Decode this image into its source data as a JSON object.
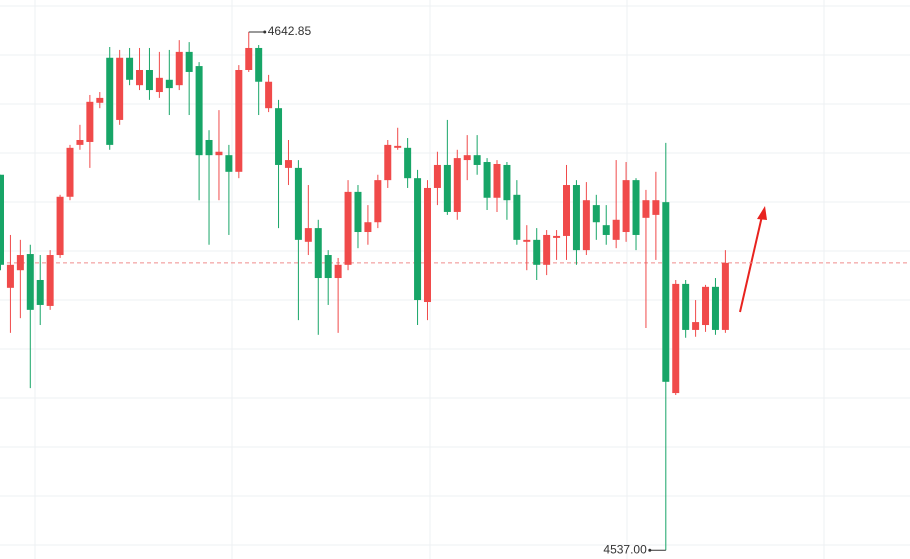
{
  "chart_data": {
    "type": "candlestick",
    "ylim": [
      4535.2,
      4649.4
    ],
    "up_color": "#f04a4a",
    "down_color": "#17a567",
    "reference_line": 4595.7,
    "reference_color": "#f08c8c",
    "max_label": "4642.85",
    "min_label": "4537.00",
    "open": [
      4613.7,
      4590.6,
      4594.2,
      4597.5,
      4592.2,
      4586.9,
      4597.3,
      4609.2,
      4619.8,
      4620.4,
      4628.4,
      4637.6,
      4624.9,
      4637.6,
      4632.0,
      4635.1,
      4630.6,
      4633.1,
      4632.0,
      4638.8,
      4635.9,
      4620.8,
      4617.7,
      4617.7,
      4614.3,
      4635.1,
      4639.6,
      4627.3,
      4627.3,
      4615.1,
      4615.1,
      4600.0,
      4602.8,
      4597.3,
      4592.6,
      4595.3,
      4610.2,
      4602.0,
      4604.0,
      4612.6,
      4619.2,
      4619.2,
      4613.0,
      4587.7,
      4611.0,
      4615.7,
      4606.1,
      4616.7,
      4617.7,
      4616.3,
      4609.0,
      4615.7,
      4609.6,
      4600.0,
      4600.4,
      4595.3,
      4600.8,
      4601.2,
      4611.6,
      4598.3,
      4607.5,
      4603.4,
      4600.4,
      4602.0,
      4612.6,
      4604.9,
      4605.5,
      4608.1,
      4569.1,
      4591.4,
      4582.0,
      4583.0,
      4590.8,
      4582.0
    ],
    "high": [
      4613.7,
      4601.4,
      4600.4,
      4599.4,
      4597.3,
      4598.3,
      4609.6,
      4619.8,
      4623.9,
      4630.0,
      4630.6,
      4639.8,
      4639.2,
      4639.6,
      4639.6,
      4639.6,
      4638.8,
      4639.2,
      4641.2,
      4640.8,
      4636.7,
      4622.8,
      4626.9,
      4619.8,
      4636.1,
      4642.85,
      4640.2,
      4634.1,
      4629.0,
      4620.8,
      4616.7,
      4611.6,
      4604.5,
      4598.3,
      4596.7,
      4612.6,
      4611.6,
      4607.5,
      4613.7,
      4620.8,
      4623.3,
      4621.2,
      4614.7,
      4612.6,
      4618.4,
      4624.9,
      4618.8,
      4621.8,
      4621.8,
      4617.1,
      4616.7,
      4616.3,
      4612.6,
      4603.4,
      4602.8,
      4602.4,
      4602.4,
      4615.7,
      4612.6,
      4612.2,
      4609.6,
      4607.5,
      4616.7,
      4616.3,
      4613.0,
      4610.6,
      4614.3,
      4620.2,
      4592.2,
      4592.2,
      4588.1,
      4591.2,
      4592.6,
      4598.3
    ],
    "low": [
      4594.2,
      4581.4,
      4584.4,
      4570.1,
      4583.0,
      4586.1,
      4596.7,
      4608.5,
      4618.8,
      4615.1,
      4627.3,
      4618.8,
      4623.9,
      4632.0,
      4631.0,
      4629.0,
      4629.4,
      4625.9,
      4631.0,
      4625.9,
      4608.5,
      4599.4,
      4608.5,
      4601.4,
      4613.0,
      4634.7,
      4625.9,
      4626.5,
      4602.8,
      4611.6,
      4584.0,
      4597.3,
      4581.0,
      4587.1,
      4581.4,
      4594.2,
      4598.7,
      4599.4,
      4602.8,
      4611.0,
      4618.8,
      4611.0,
      4583.0,
      4584.0,
      4607.5,
      4605.5,
      4604.5,
      4612.6,
      4613.7,
      4606.5,
      4606.1,
      4604.5,
      4599.4,
      4594.2,
      4592.2,
      4593.2,
      4596.3,
      4596.3,
      4595.3,
      4597.3,
      4600.4,
      4599.4,
      4598.7,
      4600.0,
      4598.3,
      4582.4,
      4596.3,
      4537.0,
      4568.7,
      4580.4,
      4580.6,
      4581.6,
      4581.0,
      4581.4
    ],
    "close": [
      4595.3,
      4595.3,
      4597.3,
      4586.1,
      4587.1,
      4597.3,
      4609.2,
      4619.2,
      4620.8,
      4628.6,
      4629.4,
      4619.8,
      4637.6,
      4633.1,
      4635.1,
      4631.0,
      4633.5,
      4631.4,
      4638.8,
      4634.7,
      4617.7,
      4617.7,
      4618.4,
      4614.3,
      4635.1,
      4639.6,
      4632.7,
      4632.7,
      4615.7,
      4616.7,
      4600.4,
      4602.8,
      4592.6,
      4592.6,
      4595.3,
      4610.2,
      4602.0,
      4604.0,
      4612.6,
      4619.8,
      4619.6,
      4613.0,
      4588.1,
      4611.0,
      4615.7,
      4606.1,
      4617.1,
      4617.7,
      4615.7,
      4609.0,
      4615.9,
      4608.5,
      4600.4,
      4600.4,
      4595.3,
      4601.4,
      4601.2,
      4611.6,
      4598.3,
      4608.5,
      4604.0,
      4601.4,
      4604.5,
      4612.6,
      4601.4,
      4608.5,
      4608.5,
      4571.4,
      4591.4,
      4582.0,
      4583.6,
      4590.8,
      4582.0,
      4595.7
    ]
  }
}
